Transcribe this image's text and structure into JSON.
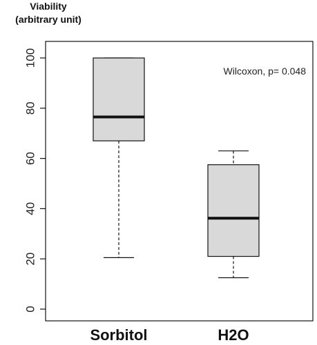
{
  "chart_data": {
    "type": "boxplot",
    "ylabel_lines": [
      "Viability",
      "(arbitrary unit)"
    ],
    "categories": [
      "Sorbitol",
      "H2O"
    ],
    "boxes": [
      {
        "category": "Sorbitol",
        "min": 20.5,
        "q1": 67,
        "median": 76.5,
        "q3": 100,
        "max": 100
      },
      {
        "category": "H2O",
        "min": 12.5,
        "q1": 21,
        "median": 36.2,
        "q3": 57.5,
        "max": 63
      }
    ],
    "ylim": [
      0,
      100
    ],
    "yticks": [
      0,
      20,
      40,
      60,
      80,
      100
    ],
    "annotation": "Wilcoxon, p= 0.048",
    "legend": "none",
    "grid": false,
    "colors": {
      "box_fill": "#d9d9d9",
      "stroke": "#111111"
    }
  }
}
